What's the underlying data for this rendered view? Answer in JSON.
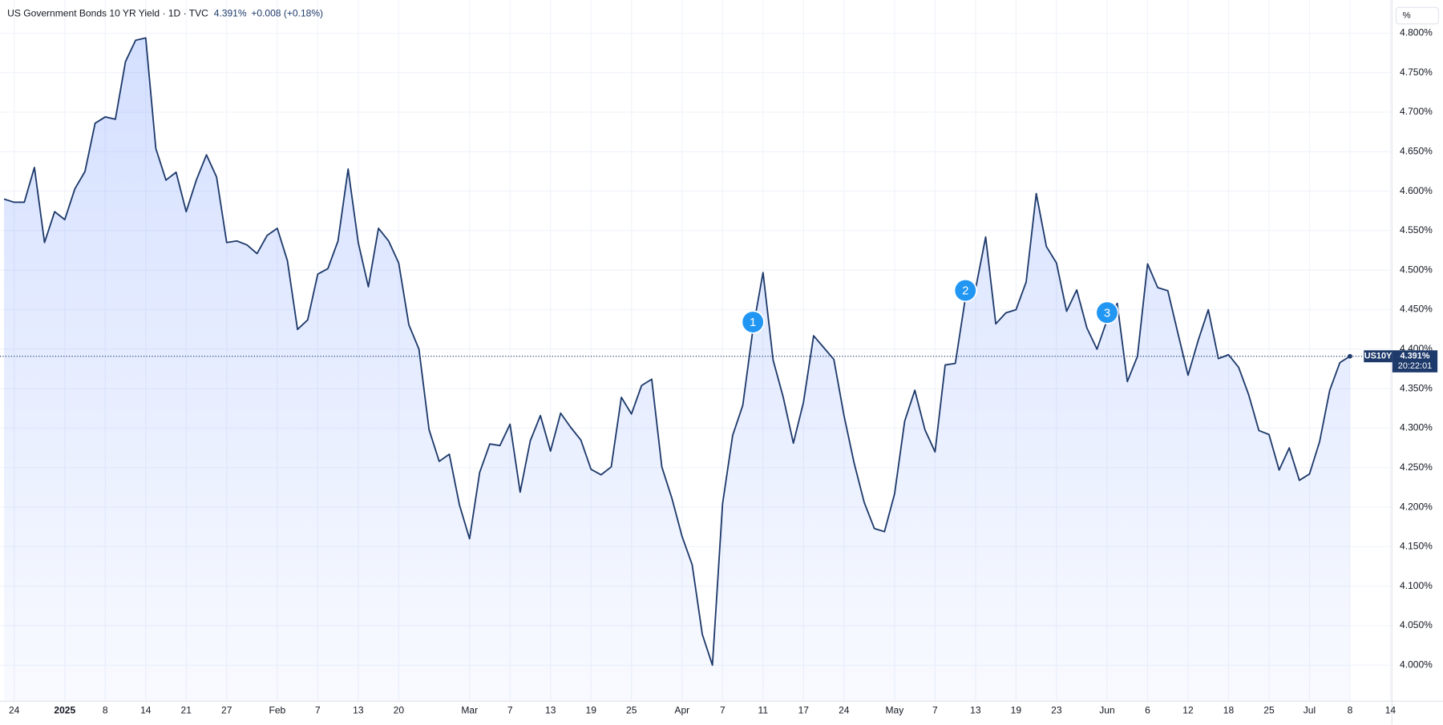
{
  "chart_data": {
    "type": "area",
    "title": "US Government Bonds 10 YR Yield · 1D · TVC",
    "last": "4.391%",
    "change": "+0.008 (+0.18%)",
    "unit": "%",
    "countdown": "20:22:01",
    "series": [
      {
        "name": "US10Y",
        "color": "#1e3a6b",
        "values": [
          4.59,
          4.586,
          4.586,
          4.63,
          4.535,
          4.574,
          4.564,
          4.603,
          4.625,
          4.686,
          4.694,
          4.691,
          4.764,
          4.791,
          4.794,
          4.654,
          4.614,
          4.624,
          4.574,
          4.614,
          4.646,
          4.618,
          4.535,
          4.537,
          4.532,
          4.521,
          4.544,
          4.553,
          4.512,
          4.425,
          4.437,
          4.495,
          4.502,
          4.537,
          4.628,
          4.535,
          4.479,
          4.553,
          4.537,
          4.509,
          4.431,
          4.4,
          4.298,
          4.258,
          4.267,
          4.203,
          4.16,
          4.244,
          4.28,
          4.278,
          4.305,
          4.219,
          4.284,
          4.316,
          4.271,
          4.319,
          4.301,
          4.285,
          4.248,
          4.241,
          4.251,
          4.339,
          4.318,
          4.354,
          4.362,
          4.251,
          4.211,
          4.163,
          4.127,
          4.039,
          4.0,
          4.204,
          4.291,
          4.329,
          4.425,
          4.497,
          4.386,
          4.339,
          4.281,
          4.333,
          4.417,
          4.402,
          4.387,
          4.316,
          4.256,
          4.206,
          4.173,
          4.169,
          4.217,
          4.309,
          4.348,
          4.298,
          4.27,
          4.38,
          4.382,
          4.465,
          4.476,
          4.542,
          4.432,
          4.446,
          4.45,
          4.485,
          4.597,
          4.53,
          4.509,
          4.448,
          4.475,
          4.427,
          4.4,
          4.437,
          4.458,
          4.359,
          4.391,
          4.508,
          4.478,
          4.474,
          4.42,
          4.367,
          4.411,
          4.45,
          4.388,
          4.393,
          4.377,
          4.342,
          4.297,
          4.292,
          4.247,
          4.275,
          4.234,
          4.242,
          4.283,
          4.348,
          4.383,
          4.391
        ]
      }
    ],
    "xlim": [
      -0.4,
      137.1
    ],
    "xticks": [
      {
        "value": 1,
        "label": "24"
      },
      {
        "value": 6,
        "label": "2025"
      },
      {
        "value": 10,
        "label": "8"
      },
      {
        "value": 14,
        "label": "14"
      },
      {
        "value": 18,
        "label": "21"
      },
      {
        "value": 22,
        "label": "27"
      },
      {
        "value": 27,
        "label": "Feb"
      },
      {
        "value": 31,
        "label": "7"
      },
      {
        "value": 35,
        "label": "13"
      },
      {
        "value": 39,
        "label": "20"
      },
      {
        "value": 46,
        "label": "Mar"
      },
      {
        "value": 50,
        "label": "7"
      },
      {
        "value": 54,
        "label": "13"
      },
      {
        "value": 58,
        "label": "19"
      },
      {
        "value": 62,
        "label": "25"
      },
      {
        "value": 67,
        "label": "Apr"
      },
      {
        "value": 71,
        "label": "7"
      },
      {
        "value": 75,
        "label": "11"
      },
      {
        "value": 79,
        "label": "17"
      },
      {
        "value": 83,
        "label": "24"
      },
      {
        "value": 88,
        "label": "May"
      },
      {
        "value": 92,
        "label": "7"
      },
      {
        "value": 96,
        "label": "13"
      },
      {
        "value": 100,
        "label": "19"
      },
      {
        "value": 104,
        "label": "23"
      },
      {
        "value": 109,
        "label": "Jun"
      },
      {
        "value": 113,
        "label": "6"
      },
      {
        "value": 117,
        "label": "12"
      },
      {
        "value": 121,
        "label": "18"
      },
      {
        "value": 125,
        "label": "25"
      },
      {
        "value": 129,
        "label": "Jul"
      },
      {
        "value": 133,
        "label": "8"
      },
      {
        "value": 137,
        "label": "14"
      }
    ],
    "ylim": [
      3.955,
      4.842
    ],
    "yticks": [
      {
        "value": 4.0,
        "label": "4.000%"
      },
      {
        "value": 4.05,
        "label": "4.050%"
      },
      {
        "value": 4.1,
        "label": "4.100%"
      },
      {
        "value": 4.15,
        "label": "4.150%"
      },
      {
        "value": 4.2,
        "label": "4.200%"
      },
      {
        "value": 4.25,
        "label": "4.250%"
      },
      {
        "value": 4.3,
        "label": "4.300%"
      },
      {
        "value": 4.35,
        "label": "4.350%"
      },
      {
        "value": 4.4,
        "label": "4.400%"
      },
      {
        "value": 4.45,
        "label": "4.450%"
      },
      {
        "value": 4.5,
        "label": "4.500%"
      },
      {
        "value": 4.55,
        "label": "4.550%"
      },
      {
        "value": 4.6,
        "label": "4.600%"
      },
      {
        "value": 4.65,
        "label": "4.650%"
      },
      {
        "value": 4.7,
        "label": "4.700%"
      },
      {
        "value": 4.75,
        "label": "4.750%"
      },
      {
        "value": 4.8,
        "label": "4.800%"
      }
    ],
    "grid": true,
    "annotations": [
      {
        "label": "1",
        "x": 74
      },
      {
        "label": "2",
        "x": 95
      },
      {
        "label": "3",
        "x": 109
      }
    ]
  }
}
